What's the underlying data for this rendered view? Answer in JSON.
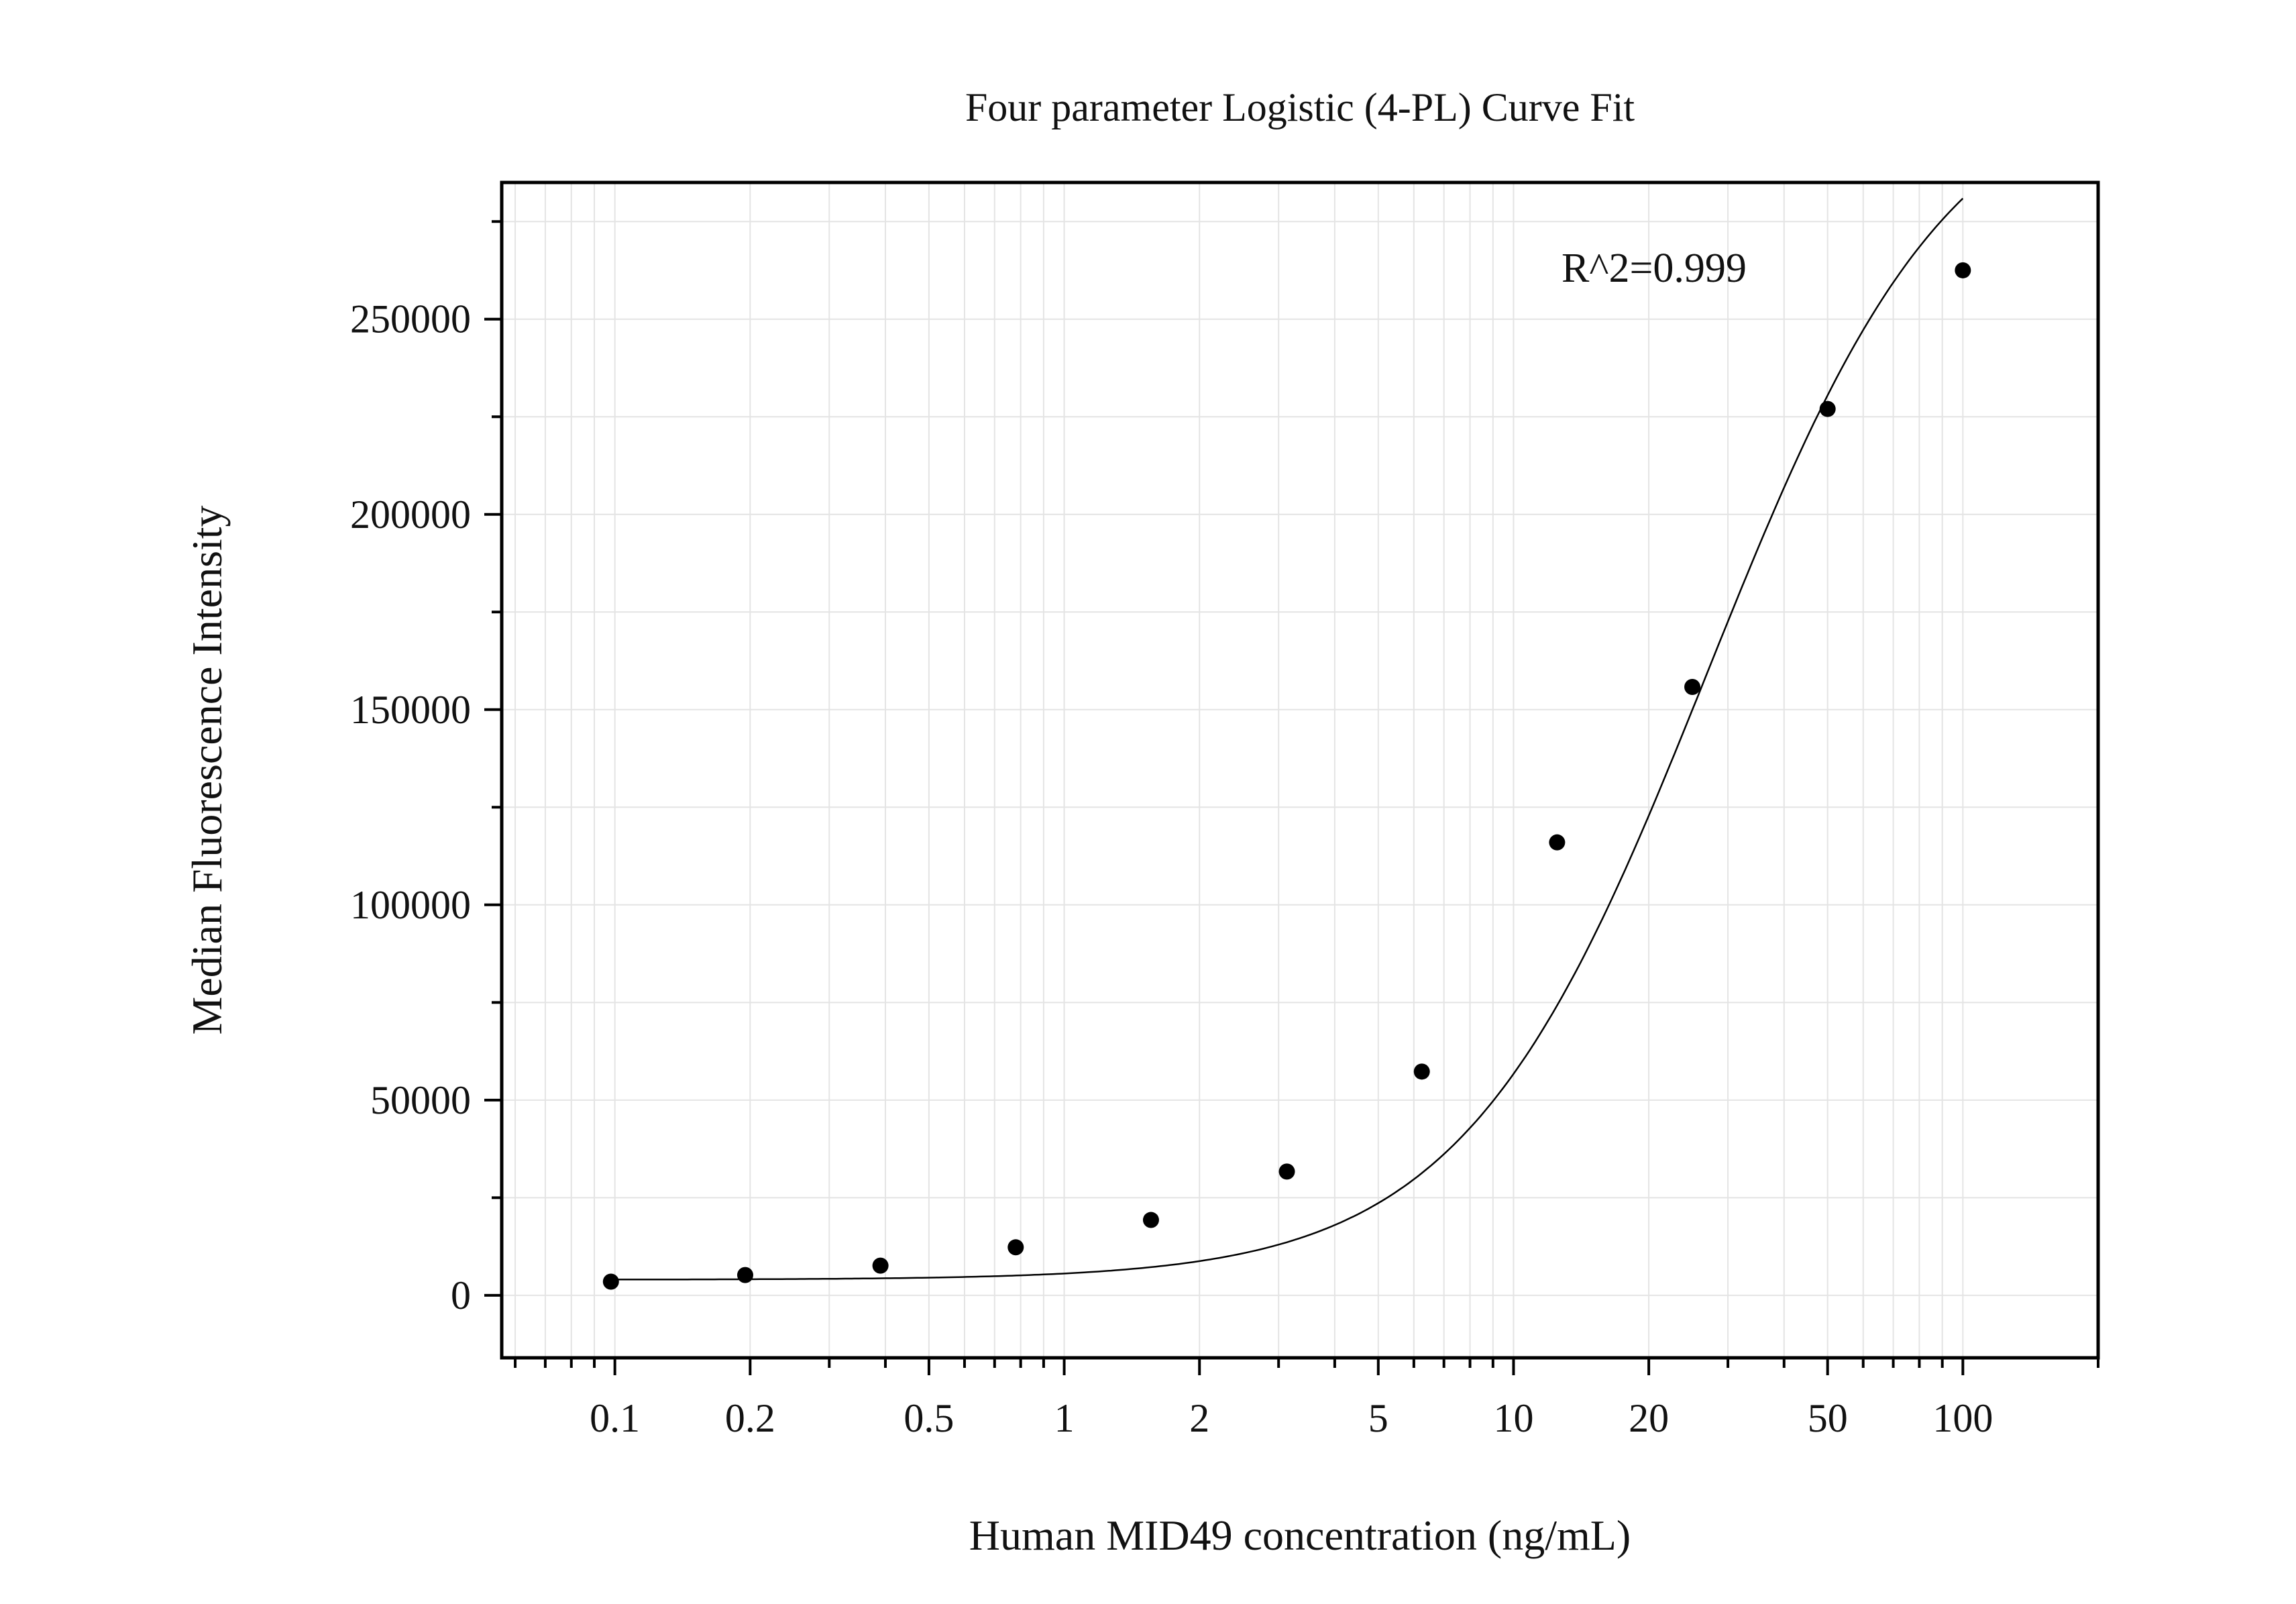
{
  "chart_data": {
    "type": "scatter",
    "title": "Four parameter Logistic (4-PL) Curve Fit",
    "xlabel": "Human MID49 concentration (ng/mL)",
    "ylabel": "Median Fluorescence Intensity",
    "x_scale": "log",
    "xlim": [
      0.056,
      200
    ],
    "ylim": [
      -16000,
      285000
    ],
    "x_ticks": [
      {
        "value": 0.1,
        "label": "0.1"
      },
      {
        "value": 0.2,
        "label": "0.2"
      },
      {
        "value": 0.5,
        "label": "0.5"
      },
      {
        "value": 1,
        "label": "1"
      },
      {
        "value": 2,
        "label": "2"
      },
      {
        "value": 5,
        "label": "5"
      },
      {
        "value": 10,
        "label": "10"
      },
      {
        "value": 20,
        "label": "20"
      },
      {
        "value": 50,
        "label": "50"
      },
      {
        "value": 100,
        "label": "100"
      }
    ],
    "y_ticks": [
      {
        "value": 0,
        "label": "0"
      },
      {
        "value": 50000,
        "label": "50000"
      },
      {
        "value": 100000,
        "label": "100000"
      },
      {
        "value": 150000,
        "label": "150000"
      },
      {
        "value": 200000,
        "label": "200000"
      },
      {
        "value": 250000,
        "label": "250000"
      }
    ],
    "grid": true,
    "annotation": "R^2=0.999",
    "series": [
      {
        "points": [
          {
            "x": 0.098,
            "y": 3500
          },
          {
            "x": 0.195,
            "y": 5200
          },
          {
            "x": 0.39,
            "y": 7600
          },
          {
            "x": 0.78,
            "y": 12300
          },
          {
            "x": 1.56,
            "y": 19300
          },
          {
            "x": 3.13,
            "y": 31700
          },
          {
            "x": 6.25,
            "y": 57300
          },
          {
            "x": 12.5,
            "y": 116000
          },
          {
            "x": 25,
            "y": 155800
          },
          {
            "x": 50,
            "y": 227000
          },
          {
            "x": 100,
            "y": 262500
          }
        ],
        "marker_color": "#000000"
      }
    ],
    "fit_curve": {
      "model": "4PL",
      "A": 4000,
      "B": 1.6,
      "C": 27,
      "D": 315000,
      "x_range": [
        0.098,
        100
      ],
      "color": "#000000"
    }
  }
}
